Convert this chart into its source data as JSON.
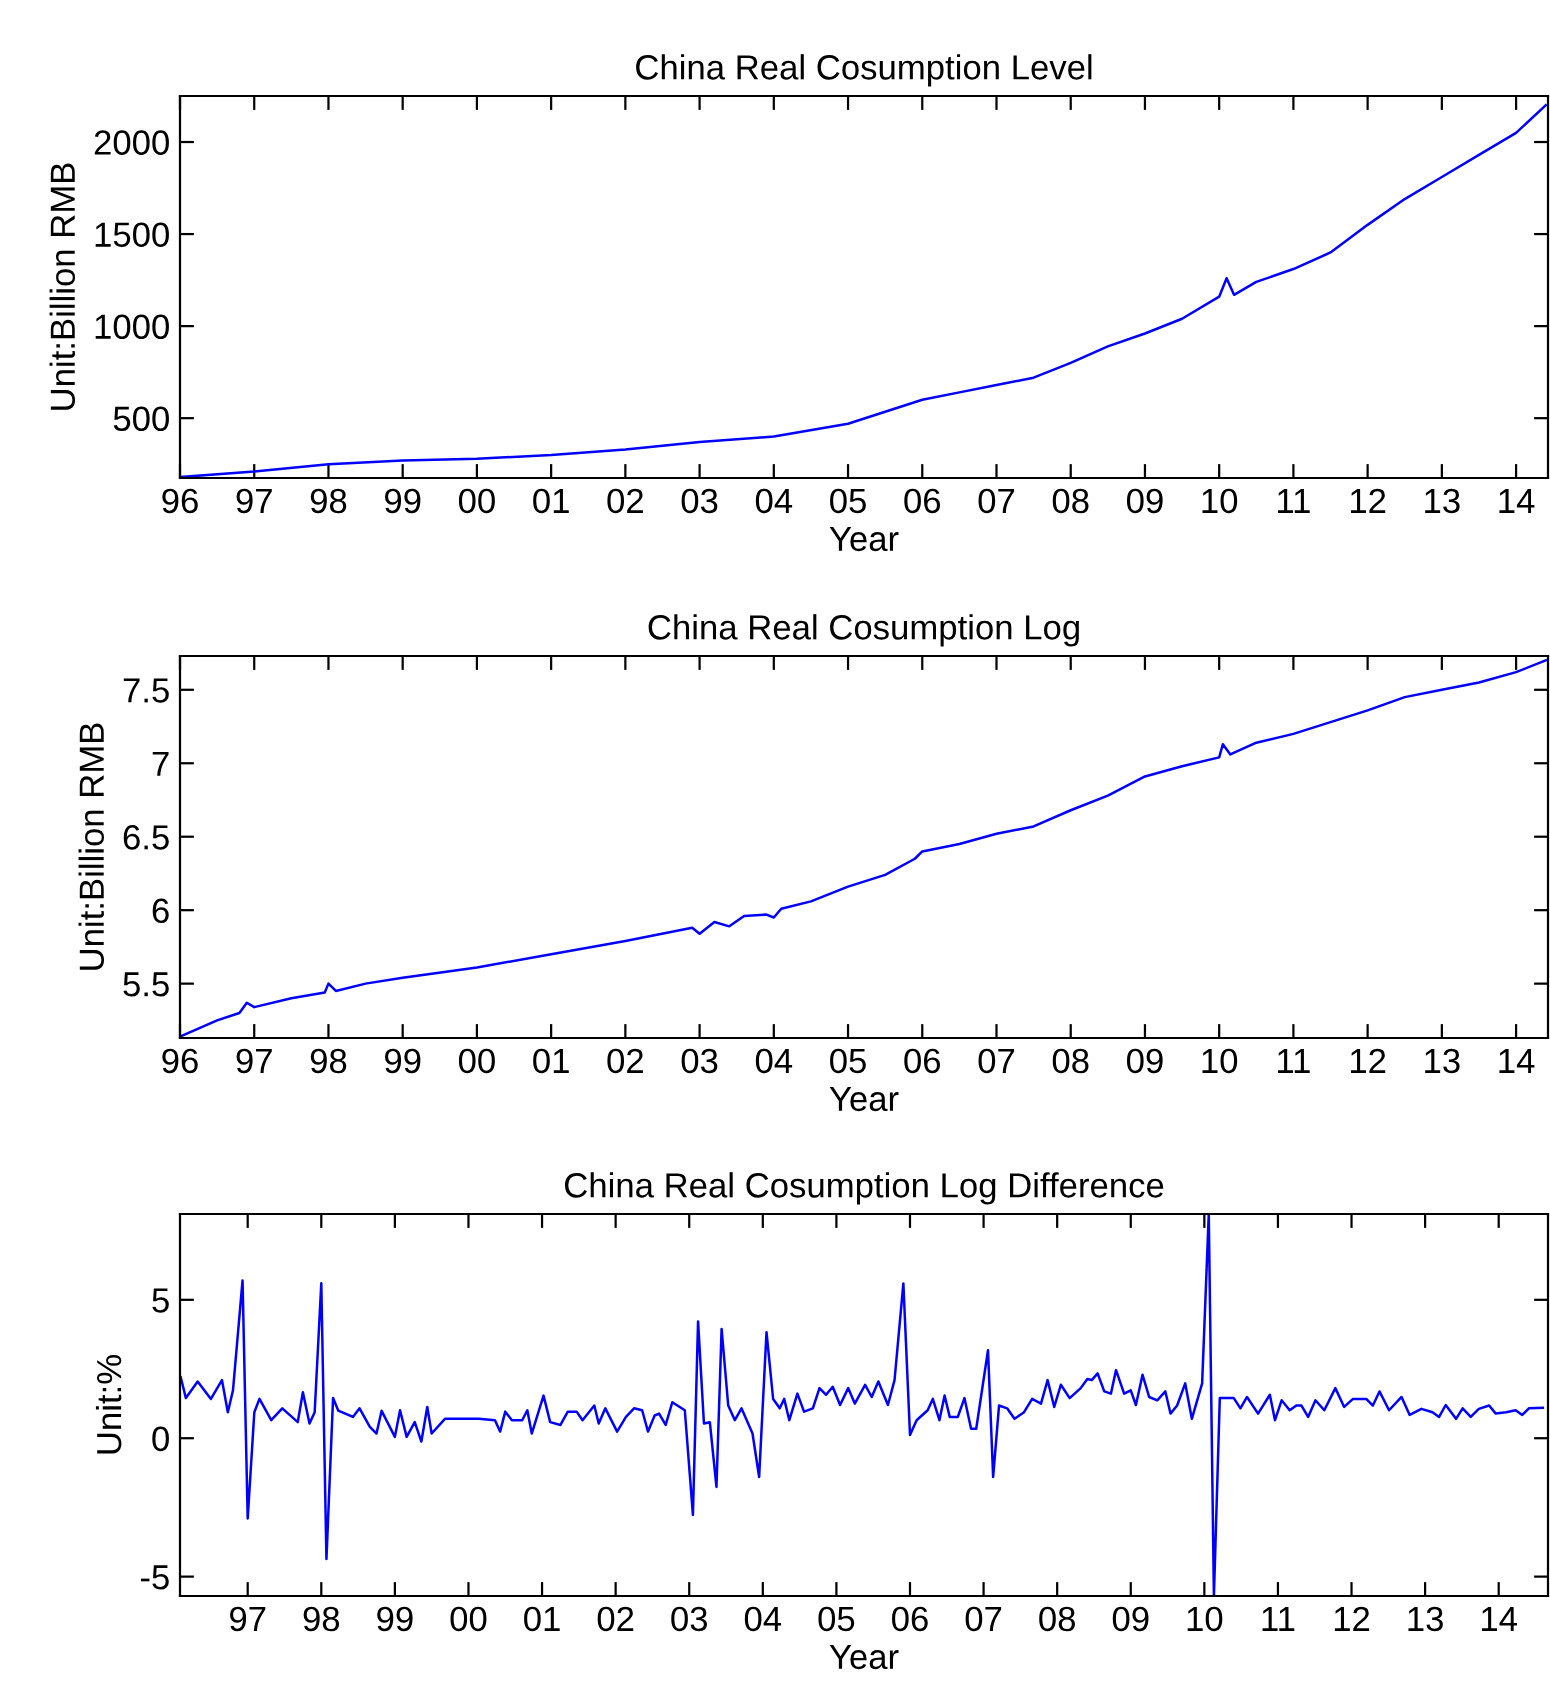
{
  "chart_data": [
    {
      "type": "line",
      "title": "China Real Cosumption Level",
      "xlabel": "Year",
      "ylabel": "Unit:Billion RMB",
      "color": "#0000ff",
      "x": [
        1996.0,
        1997.0,
        1998.0,
        1999.0,
        2000.0,
        2001.0,
        2002.0,
        2003.0,
        2004.0,
        2005.0,
        2006.0,
        2006.5,
        2007.0,
        2007.5,
        2008.0,
        2008.5,
        2009.0,
        2009.5,
        2010.0,
        2010.1,
        2010.2,
        2010.5,
        2011.0,
        2011.5,
        2012.0,
        2012.5,
        2013.0,
        2013.5,
        2014.0,
        2014.4
      ],
      "values": [
        180,
        210,
        250,
        270,
        280,
        300,
        330,
        370,
        400,
        470,
        600,
        640,
        680,
        720,
        800,
        890,
        960,
        1040,
        1160,
        1260,
        1170,
        1240,
        1310,
        1400,
        1550,
        1690,
        1810,
        1930,
        2050,
        2200
      ],
      "xlim": [
        1996.0,
        2014.43
      ],
      "ylim": [
        175,
        2250
      ],
      "yticks": [
        500,
        1000,
        1500,
        2000
      ],
      "xticks": [
        {
          "value": 1996,
          "label": "96"
        },
        {
          "value": 1997,
          "label": "97"
        },
        {
          "value": 1998,
          "label": "98"
        },
        {
          "value": 1999,
          "label": "99"
        },
        {
          "value": 2000,
          "label": "00"
        },
        {
          "value": 2001,
          "label": "01"
        },
        {
          "value": 2002,
          "label": "02"
        },
        {
          "value": 2003,
          "label": "03"
        },
        {
          "value": 2004,
          "label": "04"
        },
        {
          "value": 2005,
          "label": "05"
        },
        {
          "value": 2006,
          "label": "06"
        },
        {
          "value": 2007,
          "label": "07"
        },
        {
          "value": 2008,
          "label": "08"
        },
        {
          "value": 2009,
          "label": "09"
        },
        {
          "value": 2010,
          "label": "10"
        },
        {
          "value": 2011,
          "label": "11"
        },
        {
          "value": 2012,
          "label": "12"
        },
        {
          "value": 2013,
          "label": "13"
        },
        {
          "value": 2014,
          "label": "14"
        }
      ]
    },
    {
      "type": "line",
      "title": "China Real Cosumption Log",
      "xlabel": "Year",
      "ylabel": "Unit:Billion RMB",
      "color": "#0000ff",
      "x": [
        1996.0,
        1996.5,
        1996.8,
        1996.9,
        1997.0,
        1997.5,
        1997.95,
        1998.0,
        1998.1,
        1998.5,
        1999.0,
        2000.0,
        2001.0,
        2002.0,
        2002.9,
        2003.0,
        2003.2,
        2003.4,
        2003.6,
        2003.9,
        2004.0,
        2004.1,
        2004.5,
        2005.0,
        2005.5,
        2005.9,
        2006.0,
        2006.5,
        2007.0,
        2007.5,
        2008.0,
        2008.5,
        2009.0,
        2009.5,
        2010.0,
        2010.05,
        2010.15,
        2010.5,
        2011.0,
        2011.5,
        2012.0,
        2012.5,
        2013.0,
        2013.5,
        2014.0,
        2014.4
      ],
      "values": [
        5.14,
        5.25,
        5.3,
        5.37,
        5.34,
        5.4,
        5.44,
        5.5,
        5.45,
        5.5,
        5.54,
        5.61,
        5.7,
        5.79,
        5.88,
        5.84,
        5.92,
        5.89,
        5.96,
        5.97,
        5.95,
        6.01,
        6.06,
        6.16,
        6.24,
        6.35,
        6.4,
        6.45,
        6.52,
        6.57,
        6.68,
        6.78,
        6.91,
        6.98,
        7.04,
        7.13,
        7.06,
        7.14,
        7.2,
        7.28,
        7.36,
        7.45,
        7.5,
        7.55,
        7.62,
        7.7
      ],
      "xlim": [
        1996.0,
        2014.43
      ],
      "ylim": [
        5.13,
        7.73
      ],
      "yticks": [
        5.5,
        6,
        6.5,
        7,
        7.5
      ],
      "xticks": [
        {
          "value": 1996,
          "label": "96"
        },
        {
          "value": 1997,
          "label": "97"
        },
        {
          "value": 1998,
          "label": "98"
        },
        {
          "value": 1999,
          "label": "99"
        },
        {
          "value": 2000,
          "label": "00"
        },
        {
          "value": 2001,
          "label": "01"
        },
        {
          "value": 2002,
          "label": "02"
        },
        {
          "value": 2003,
          "label": "03"
        },
        {
          "value": 2004,
          "label": "04"
        },
        {
          "value": 2005,
          "label": "05"
        },
        {
          "value": 2006,
          "label": "06"
        },
        {
          "value": 2007,
          "label": "07"
        },
        {
          "value": 2008,
          "label": "08"
        },
        {
          "value": 2009,
          "label": "09"
        },
        {
          "value": 2010,
          "label": "10"
        },
        {
          "value": 2011,
          "label": "11"
        },
        {
          "value": 2012,
          "label": "12"
        },
        {
          "value": 2013,
          "label": "13"
        },
        {
          "value": 2014,
          "label": "14"
        }
      ]
    },
    {
      "type": "line",
      "title": "China Real Cosumption Log Difference",
      "xlabel": "Year",
      "ylabel": "Unit:%",
      "color": "#0000ff",
      "x": [
        1996.09,
        1996.16,
        1996.32,
        1996.5,
        1996.65,
        1996.73,
        1996.8,
        1996.93,
        1997.0,
        1997.09,
        1997.16,
        1997.32,
        1997.47,
        1997.68,
        1997.75,
        1997.84,
        1997.91,
        1998.0,
        1998.07,
        1998.16,
        1998.23,
        1998.43,
        1998.52,
        1998.66,
        1998.75,
        1998.82,
        1999.0,
        1999.07,
        1999.16,
        1999.27,
        1999.36,
        1999.44,
        1999.5,
        1999.68,
        2000.14,
        2000.36,
        2000.43,
        2000.5,
        2000.59,
        2000.73,
        2000.8,
        2000.86,
        2001.02,
        2001.11,
        2001.25,
        2001.35,
        2001.47,
        2001.55,
        2001.71,
        2001.77,
        2001.86,
        2002.02,
        2002.14,
        2002.25,
        2002.36,
        2002.44,
        2002.53,
        2002.59,
        2002.68,
        2002.77,
        2002.94,
        2003.05,
        2003.12,
        2003.2,
        2003.28,
        2003.37,
        2003.44,
        2003.53,
        2003.62,
        2003.71,
        2003.86,
        2003.95,
        2004.05,
        2004.14,
        2004.23,
        2004.29,
        2004.36,
        2004.47,
        2004.56,
        2004.68,
        2004.77,
        2004.86,
        2004.95,
        2005.05,
        2005.16,
        2005.25,
        2005.39,
        2005.48,
        2005.57,
        2005.7,
        2005.79,
        2005.91,
        2006.0,
        2006.09,
        2006.24,
        2006.31,
        2006.4,
        2006.47,
        2006.54,
        2006.65,
        2006.74,
        2006.83,
        2006.9,
        2007.06,
        2007.13,
        2007.21,
        2007.32,
        2007.42,
        2007.55,
        2007.66,
        2007.78,
        2007.87,
        2007.96,
        2008.05,
        2008.17,
        2008.32,
        2008.41,
        2008.47,
        2008.55,
        2008.64,
        2008.73,
        2008.8,
        2008.91,
        2009.0,
        2009.07,
        2009.16,
        2009.25,
        2009.36,
        2009.47,
        2009.54,
        2009.63,
        2009.74,
        2009.83,
        2009.97,
        2010.06,
        2010.13,
        2010.21,
        2010.4,
        2010.49,
        2010.58,
        2010.73,
        2010.89,
        2010.96,
        2011.05,
        2011.16,
        2011.25,
        2011.32,
        2011.41,
        2011.51,
        2011.63,
        2011.78,
        2011.9,
        2012.02,
        2012.2,
        2012.29,
        2012.38,
        2012.51,
        2012.68,
        2012.79,
        2012.95,
        2013.1,
        2013.19,
        2013.28,
        2013.42,
        2013.51,
        2013.62,
        2013.73,
        2013.87,
        2013.96,
        2014.1,
        2014.23,
        2014.32,
        2014.41,
        2014.6
      ],
      "values": [
        2.2,
        1.45,
        2.05,
        1.42,
        2.1,
        0.94,
        1.73,
        5.7,
        -2.9,
        0.94,
        1.42,
        0.65,
        1.08,
        0.58,
        1.66,
        0.53,
        0.94,
        5.6,
        -4.36,
        1.45,
        1.0,
        0.77,
        1.08,
        0.41,
        0.17,
        0.99,
        0.05,
        1.01,
        0.05,
        0.58,
        -0.12,
        1.13,
        0.17,
        0.7,
        0.7,
        0.65,
        0.24,
        0.96,
        0.65,
        0.65,
        1.01,
        0.17,
        1.54,
        0.58,
        0.48,
        0.96,
        0.96,
        0.65,
        1.18,
        0.53,
        1.08,
        0.24,
        0.77,
        1.08,
        1.01,
        0.24,
        0.82,
        0.89,
        0.48,
        1.3,
        1.01,
        -2.77,
        4.22,
        0.53,
        0.58,
        -1.76,
        3.95,
        1.18,
        0.65,
        1.08,
        0.17,
        -1.4,
        3.83,
        1.42,
        1.08,
        1.42,
        0.65,
        1.61,
        0.96,
        1.08,
        1.81,
        1.57,
        1.86,
        1.2,
        1.81,
        1.25,
        1.93,
        1.49,
        2.05,
        1.2,
        2.1,
        5.59,
        0.12,
        0.65,
        1.01,
        1.42,
        0.65,
        1.54,
        0.77,
        0.77,
        1.45,
        0.34,
        0.34,
        3.18,
        -1.4,
        1.18,
        1.08,
        0.7,
        0.94,
        1.42,
        1.25,
        2.1,
        1.13,
        1.93,
        1.45,
        1.81,
        2.14,
        2.1,
        2.34,
        1.69,
        1.61,
        2.46,
        1.61,
        1.73,
        1.2,
        2.29,
        1.49,
        1.37,
        1.69,
        0.89,
        1.18,
        1.98,
        0.7,
        1.98,
        8.1,
        -5.7,
        1.45,
        1.45,
        1.08,
        1.49,
        0.89,
        1.57,
        0.65,
        1.37,
        1.01,
        1.18,
        1.18,
        0.77,
        1.37,
        1.01,
        1.81,
        1.13,
        1.42,
        1.42,
        1.18,
        1.69,
        1.01,
        1.49,
        0.84,
        1.06,
        0.94,
        0.77,
        1.2,
        0.7,
        1.08,
        0.77,
        1.06,
        1.18,
        0.89,
        0.94,
        1.01,
        0.84,
        1.08,
        1.1
      ],
      "xlim": [
        1996.08,
        2014.67
      ],
      "ylim": [
        -5.7,
        8.1
      ],
      "yticks": [
        {
          "value": -5,
          "label": "-5"
        },
        0,
        5
      ],
      "xticks": [
        {
          "value": 1997,
          "label": "97"
        },
        {
          "value": 1998,
          "label": "98"
        },
        {
          "value": 1999,
          "label": "99"
        },
        {
          "value": 2000,
          "label": "00"
        },
        {
          "value": 2001,
          "label": "01"
        },
        {
          "value": 2002,
          "label": "02"
        },
        {
          "value": 2003,
          "label": "03"
        },
        {
          "value": 2004,
          "label": "04"
        },
        {
          "value": 2005,
          "label": "05"
        },
        {
          "value": 2006,
          "label": "06"
        },
        {
          "value": 2007,
          "label": "07"
        },
        {
          "value": 2008,
          "label": "08"
        },
        {
          "value": 2009,
          "label": "09"
        },
        {
          "value": 2010,
          "label": "10"
        },
        {
          "value": 2011,
          "label": "11"
        },
        {
          "value": 2012,
          "label": "12"
        },
        {
          "value": 2013,
          "label": "13"
        },
        {
          "value": 2014,
          "label": "14"
        }
      ]
    }
  ]
}
